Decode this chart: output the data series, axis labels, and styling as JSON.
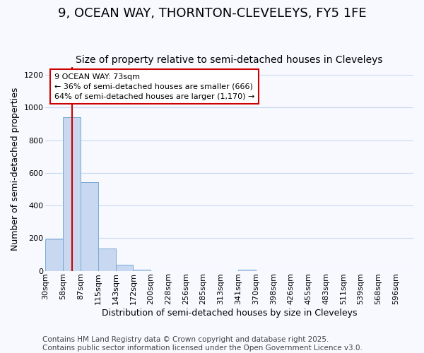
{
  "title": "9, OCEAN WAY, THORNTON-CLEVELEYS, FY5 1FE",
  "subtitle": "Size of property relative to semi-detached houses in Cleveleys",
  "xlabel": "Distribution of semi-detached houses by size in Cleveleys",
  "ylabel": "Number of semi-detached properties",
  "bin_labels": [
    "30sqm",
    "58sqm",
    "87sqm",
    "115sqm",
    "143sqm",
    "172sqm",
    "200sqm",
    "228sqm",
    "256sqm",
    "285sqm",
    "313sqm",
    "341sqm",
    "370sqm",
    "398sqm",
    "426sqm",
    "455sqm",
    "483sqm",
    "511sqm",
    "539sqm",
    "568sqm",
    "596sqm"
  ],
  "bar_values": [
    192,
    940,
    543,
    135,
    38,
    5,
    0,
    0,
    0,
    0,
    0,
    5,
    0,
    0,
    0,
    0,
    0,
    0,
    0,
    0,
    0
  ],
  "bar_color": "#c8d8f0",
  "bar_edge_color": "#7aaad0",
  "property_line_color": "#cc0000",
  "annotation_text": "9 OCEAN WAY: 73sqm\n← 36% of semi-detached houses are smaller (666)\n64% of semi-detached houses are larger (1,170) →",
  "annotation_box_color": "#ffffff",
  "annotation_box_edge_color": "#cc0000",
  "ylim": [
    0,
    1250
  ],
  "yticks": [
    0,
    200,
    400,
    600,
    800,
    1000,
    1200
  ],
  "footer_text": "Contains HM Land Registry data © Crown copyright and database right 2025.\nContains public sector information licensed under the Open Government Licence v3.0.",
  "background_color": "#f7f9ff",
  "grid_color": "#c8d8f0",
  "title_fontsize": 13,
  "subtitle_fontsize": 10,
  "axis_label_fontsize": 9,
  "tick_fontsize": 8,
  "footer_fontsize": 7.5
}
